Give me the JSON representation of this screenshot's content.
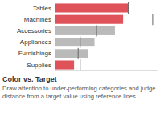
{
  "chart_data": {
    "type": "bar",
    "orientation": "horizontal",
    "title": "Color vs. Target",
    "subtitle": "Draw attention to under-performing categories and judge distance from a target value using reference lines.",
    "categories": [
      "Tables",
      "Machines",
      "Accessories",
      "Appliances",
      "Furnishings",
      "Supplies"
    ],
    "values": [
      72,
      67,
      59,
      39,
      33,
      19
    ],
    "targets": [
      72,
      96,
      41,
      25,
      23,
      25
    ],
    "colors": [
      "#e0525a",
      "#e0525a",
      "#bababa",
      "#bababa",
      "#bababa",
      "#e0525a"
    ],
    "xlim": [
      0,
      100
    ],
    "tick_labels": "y"
  }
}
